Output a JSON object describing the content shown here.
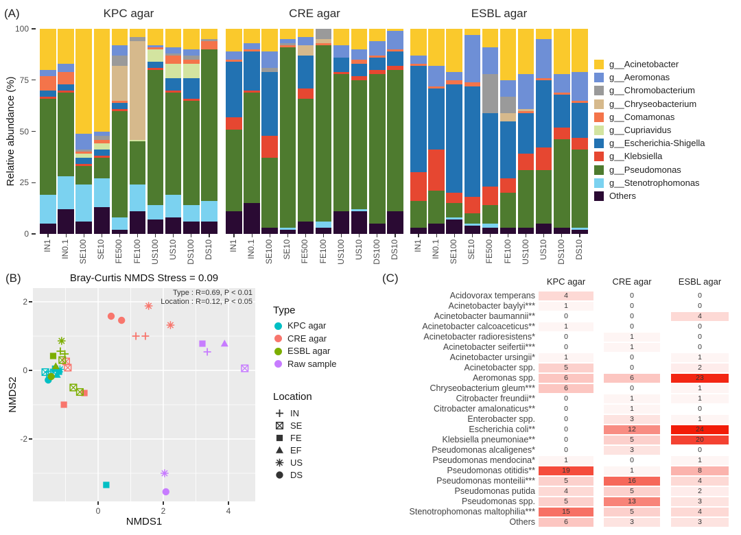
{
  "figure": {
    "panel_a": {
      "label": "(A)",
      "ylabel": "Relative abundance (%)",
      "yticks": [
        0,
        25,
        50,
        75,
        100
      ],
      "samples": [
        "IN1",
        "IN0.1",
        "SE100",
        "SE10",
        "FE500",
        "FE100",
        "US100",
        "US10",
        "DS100",
        "DS10"
      ],
      "taxa": [
        {
          "name": "g__Acinetobacter",
          "color": "#FAC92C"
        },
        {
          "name": "g__Aeromonas",
          "color": "#6E8FD6"
        },
        {
          "name": "g__Chromobacterium",
          "color": "#9A9A9A"
        },
        {
          "name": "g__Chryseobacterium",
          "color": "#D6B98C"
        },
        {
          "name": "g__Comamonas",
          "color": "#F4744A"
        },
        {
          "name": "g__Cupriavidus",
          "color": "#D3E4A0"
        },
        {
          "name": "g__Escherichia-Shigella",
          "color": "#2272B2"
        },
        {
          "name": "g__Klebsiella",
          "color": "#E64731"
        },
        {
          "name": "g__Pseudomonas",
          "color": "#4E7B2F"
        },
        {
          "name": "g__Stenotrophomonas",
          "color": "#7BD2F0"
        },
        {
          "name": "Others",
          "color": "#2A0A33"
        }
      ]
    },
    "panel_b": {
      "label": "(B)",
      "title": "Bray-Curtis  NMDS  Stress = 0.09",
      "annotation_line1": "Type : R=0.69,  P < 0.01",
      "annotation_line2": "Location : R=0.12,  P < 0.05",
      "xlabel": "NMDS1",
      "ylabel": "NMDS2",
      "xticks": [
        0,
        2,
        4
      ],
      "yticks": [
        2,
        0,
        -2
      ],
      "type_legend": {
        "title": "Type",
        "items": [
          {
            "label": "KPC agar",
            "color": "#00BFC4"
          },
          {
            "label": "CRE agar",
            "color": "#F8766D"
          },
          {
            "label": "ESBL agar",
            "color": "#7CAE00"
          },
          {
            "label": "Raw sample",
            "color": "#C77CFF"
          }
        ]
      },
      "location_legend": {
        "title": "Location",
        "items": [
          {
            "label": "IN",
            "shape": "cross"
          },
          {
            "label": "SE",
            "shape": "boxx"
          },
          {
            "label": "FE",
            "shape": "square"
          },
          {
            "label": "EF",
            "shape": "triangle"
          },
          {
            "label": "US",
            "shape": "asterisk"
          },
          {
            "label": "DS",
            "shape": "circle"
          }
        ]
      }
    },
    "panel_c": {
      "label": "(C)",
      "columns": [
        "KPC agar",
        "CRE agar",
        "ESBL agar"
      ],
      "max_value": 24,
      "base_color": "#F21C08"
    }
  },
  "chart_data": [
    {
      "type": "bar",
      "id": "kpc",
      "title": "KPC agar",
      "stacked": true,
      "ylim": [
        0,
        100
      ],
      "categories": [
        "IN1",
        "IN0.1",
        "SE100",
        "SE10",
        "FE500",
        "FE100",
        "US100",
        "US10",
        "DS100",
        "DS10"
      ],
      "series_order": [
        "g__Acinetobacter",
        "g__Aeromonas",
        "g__Chromobacterium",
        "g__Chryseobacterium",
        "g__Comamonas",
        "g__Cupriavidus",
        "g__Escherichia-Shigella",
        "g__Klebsiella",
        "g__Pseudomonas",
        "g__Stenotrophomonas",
        "Others"
      ],
      "values": [
        [
          20,
          3,
          0,
          0,
          7,
          0,
          3,
          1,
          47,
          14,
          5
        ],
        [
          17,
          4,
          0,
          0,
          6,
          0,
          3,
          1,
          41,
          16,
          12
        ],
        [
          51,
          8,
          1,
          0,
          1,
          2,
          3,
          1,
          9,
          18,
          6
        ],
        [
          50,
          2,
          2,
          0,
          2,
          3,
          3,
          1,
          10,
          14,
          13
        ],
        [
          8,
          5,
          5,
          17,
          1,
          0,
          3,
          1,
          52,
          6,
          2
        ],
        [
          4,
          0,
          2,
          48,
          0,
          1,
          0,
          0,
          21,
          13,
          11
        ],
        [
          8,
          1,
          0,
          0,
          1,
          6,
          3,
          1,
          66,
          7,
          7
        ],
        [
          9,
          3,
          1,
          0,
          4,
          7,
          6,
          1,
          50,
          11,
          8
        ],
        [
          10,
          3,
          2,
          0,
          2,
          7,
          10,
          1,
          51,
          8,
          6
        ],
        [
          5,
          0,
          1,
          0,
          4,
          0,
          0,
          0,
          74,
          10,
          6
        ]
      ]
    },
    {
      "type": "bar",
      "id": "cre",
      "title": "CRE agar",
      "stacked": true,
      "ylim": [
        0,
        100
      ],
      "categories": [
        "IN1",
        "IN0.1",
        "SE100",
        "SE10",
        "FE500",
        "FE100",
        "US100",
        "US10",
        "DS100",
        "DS10"
      ],
      "series_order": [
        "g__Acinetobacter",
        "g__Aeromonas",
        "g__Chromobacterium",
        "g__Chryseobacterium",
        "g__Comamonas",
        "g__Cupriavidus",
        "g__Escherichia-Shigella",
        "g__Klebsiella",
        "g__Pseudomonas",
        "g__Stenotrophomonas",
        "Others"
      ],
      "values": [
        [
          11,
          4,
          0,
          0,
          1,
          0,
          27,
          6,
          40,
          0,
          11
        ],
        [
          7,
          3,
          0,
          0,
          1,
          0,
          19,
          1,
          54,
          0,
          15
        ],
        [
          11,
          8,
          2,
          0,
          0,
          0,
          31,
          11,
          34,
          0,
          3
        ],
        [
          5,
          2,
          1,
          0,
          1,
          0,
          0,
          0,
          88,
          1,
          2
        ],
        [
          4,
          4,
          0,
          5,
          0,
          0,
          16,
          5,
          60,
          0,
          6
        ],
        [
          0,
          0,
          5,
          2,
          1,
          0,
          0,
          0,
          86,
          3,
          3
        ],
        [
          8,
          6,
          0,
          0,
          0,
          0,
          7,
          1,
          67,
          0,
          11
        ],
        [
          10,
          5,
          0,
          0,
          2,
          0,
          6,
          2,
          63,
          1,
          11
        ],
        [
          6,
          7,
          0,
          0,
          1,
          0,
          6,
          2,
          73,
          0,
          5
        ],
        [
          1,
          9,
          0,
          0,
          1,
          0,
          7,
          2,
          69,
          0,
          11
        ]
      ]
    },
    {
      "type": "bar",
      "id": "esbl",
      "title": "ESBL agar",
      "stacked": true,
      "ylim": [
        0,
        100
      ],
      "categories": [
        "IN1",
        "IN0.1",
        "SE100",
        "SE10",
        "FE500",
        "FE100",
        "US100",
        "US10",
        "DS100",
        "DS10"
      ],
      "series_order": [
        "g__Acinetobacter",
        "g__Aeromonas",
        "g__Chromobacterium",
        "g__Chryseobacterium",
        "g__Comamonas",
        "g__Cupriavidus",
        "g__Escherichia-Shigella",
        "g__Klebsiella",
        "g__Pseudomonas",
        "g__Stenotrophomonas",
        "Others"
      ],
      "values": [
        [
          13,
          4,
          0,
          0,
          1,
          0,
          52,
          14,
          13,
          0,
          3
        ],
        [
          18,
          10,
          0,
          0,
          1,
          0,
          30,
          20,
          16,
          0,
          5
        ],
        [
          21,
          4,
          0,
          0,
          2,
          0,
          53,
          5,
          7,
          1,
          7
        ],
        [
          3,
          23,
          0,
          0,
          2,
          0,
          54,
          8,
          5,
          1,
          4
        ],
        [
          9,
          13,
          19,
          0,
          0,
          0,
          36,
          9,
          9,
          2,
          3
        ],
        [
          25,
          8,
          8,
          4,
          0,
          0,
          28,
          7,
          17,
          0,
          3
        ],
        [
          22,
          17,
          0,
          1,
          1,
          0,
          20,
          8,
          28,
          0,
          3
        ],
        [
          5,
          19,
          0,
          0,
          1,
          0,
          33,
          11,
          26,
          0,
          5
        ],
        [
          22,
          9,
          0,
          0,
          1,
          0,
          16,
          6,
          43,
          0,
          3
        ],
        [
          21,
          14,
          0,
          0,
          1,
          0,
          17,
          6,
          38,
          1,
          2
        ]
      ]
    },
    {
      "type": "scatter",
      "id": "nmds",
      "title": "Bray-Curtis  NMDS  Stress = 0.09",
      "xlabel": "NMDS1",
      "ylabel": "NMDS2",
      "xlim": [
        -2.0,
        4.8
      ],
      "ylim": [
        -3.82,
        2.4
      ],
      "xticks": [
        0,
        2,
        4
      ],
      "yticks": [
        2,
        0,
        -2
      ],
      "points": [
        {
          "type": "KPC agar",
          "shape": "cross",
          "x": -1.28,
          "y": -0.02
        },
        {
          "type": "KPC agar",
          "shape": "boxx",
          "x": -1.62,
          "y": -0.05
        },
        {
          "type": "KPC agar",
          "shape": "boxx",
          "x": -1.48,
          "y": -0.12
        },
        {
          "type": "KPC agar",
          "shape": "boxx",
          "x": -1.36,
          "y": -0.06
        },
        {
          "type": "KPC agar",
          "shape": "square",
          "x": -1.32,
          "y": 0.05
        },
        {
          "type": "KPC agar",
          "shape": "square",
          "x": -1.2,
          "y": -0.04
        },
        {
          "type": "KPC agar",
          "shape": "triangle",
          "x": -1.26,
          "y": -0.13
        },
        {
          "type": "KPC agar",
          "shape": "asterisk",
          "x": -1.17,
          "y": 0.03
        },
        {
          "type": "KPC agar",
          "shape": "circle",
          "x": -1.53,
          "y": -0.28
        },
        {
          "type": "KPC agar",
          "shape": "square",
          "x": 0.25,
          "y": -3.34
        },
        {
          "type": "CRE agar",
          "shape": "circle",
          "x": 0.4,
          "y": 1.58
        },
        {
          "type": "CRE agar",
          "shape": "circle",
          "x": 0.72,
          "y": 1.46
        },
        {
          "type": "CRE agar",
          "shape": "cross",
          "x": 1.16,
          "y": 1.0
        },
        {
          "type": "CRE agar",
          "shape": "cross",
          "x": 1.45,
          "y": 1.0
        },
        {
          "type": "CRE agar",
          "shape": "asterisk",
          "x": 1.55,
          "y": 1.88
        },
        {
          "type": "CRE agar",
          "shape": "asterisk",
          "x": 2.22,
          "y": 1.32
        },
        {
          "type": "CRE agar",
          "shape": "boxx",
          "x": -0.98,
          "y": 0.26
        },
        {
          "type": "CRE agar",
          "shape": "boxx",
          "x": -0.93,
          "y": 0.08
        },
        {
          "type": "CRE agar",
          "shape": "square",
          "x": -0.42,
          "y": -0.66
        },
        {
          "type": "CRE agar",
          "shape": "square",
          "x": -1.05,
          "y": -1.0
        },
        {
          "type": "ESBL agar",
          "shape": "asterisk",
          "x": -1.12,
          "y": 0.86
        },
        {
          "type": "ESBL agar",
          "shape": "cross",
          "x": -1.16,
          "y": 0.56
        },
        {
          "type": "ESBL agar",
          "shape": "cross",
          "x": -1.02,
          "y": 0.48
        },
        {
          "type": "ESBL agar",
          "shape": "square",
          "x": -1.38,
          "y": 0.42
        },
        {
          "type": "ESBL agar",
          "shape": "boxx",
          "x": -1.1,
          "y": 0.3
        },
        {
          "type": "ESBL agar",
          "shape": "boxx",
          "x": -0.76,
          "y": -0.5
        },
        {
          "type": "ESBL agar",
          "shape": "boxx",
          "x": -0.56,
          "y": -0.63
        },
        {
          "type": "ESBL agar",
          "shape": "circle",
          "x": -1.44,
          "y": -0.18
        },
        {
          "type": "ESBL agar",
          "shape": "triangle",
          "x": -1.3,
          "y": 0.12
        },
        {
          "type": "Raw sample",
          "shape": "square",
          "x": 3.2,
          "y": 0.78
        },
        {
          "type": "Raw sample",
          "shape": "triangle",
          "x": 3.88,
          "y": 0.78
        },
        {
          "type": "Raw sample",
          "shape": "cross",
          "x": 3.35,
          "y": 0.54
        },
        {
          "type": "Raw sample",
          "shape": "boxx",
          "x": 4.5,
          "y": 0.06
        },
        {
          "type": "Raw sample",
          "shape": "asterisk",
          "x": 2.04,
          "y": -3.0
        },
        {
          "type": "Raw sample",
          "shape": "circle",
          "x": 2.08,
          "y": -3.54
        }
      ]
    },
    {
      "type": "heatmap",
      "id": "species-counts",
      "columns": [
        "KPC agar",
        "CRE agar",
        "ESBL agar"
      ],
      "value_range": [
        0,
        24
      ],
      "rows": [
        {
          "name": "Acidovorax temperans",
          "values": [
            4,
            0,
            0
          ]
        },
        {
          "name": "Acinetobacter baylyi***",
          "values": [
            1,
            0,
            0
          ]
        },
        {
          "name": "Acinetobacter baumannii**",
          "values": [
            0,
            0,
            4
          ]
        },
        {
          "name": "Acinetobacter calcoaceticus**",
          "values": [
            1,
            0,
            0
          ]
        },
        {
          "name": "Acinetobacter radioresistens*",
          "values": [
            0,
            1,
            0
          ]
        },
        {
          "name": "Acinetobacter seifertii***",
          "values": [
            0,
            1,
            0
          ]
        },
        {
          "name": "Acinetobacter ursingii*",
          "values": [
            1,
            0,
            1
          ]
        },
        {
          "name": "Acinetobacter spp.",
          "values": [
            5,
            0,
            2
          ]
        },
        {
          "name": "Aeromonas spp.",
          "values": [
            6,
            6,
            23
          ]
        },
        {
          "name": "Chryseobacterium gleum***",
          "values": [
            6,
            0,
            1
          ]
        },
        {
          "name": "Citrobacter freundii**",
          "values": [
            0,
            1,
            1
          ]
        },
        {
          "name": "Citrobacter amalonaticus**",
          "values": [
            0,
            1,
            0
          ]
        },
        {
          "name": "Enterobacter spp.",
          "values": [
            0,
            3,
            1
          ]
        },
        {
          "name": "Escherichia coli**",
          "values": [
            0,
            12,
            24
          ]
        },
        {
          "name": "Klebsiella pneumoniae**",
          "values": [
            0,
            5,
            20
          ]
        },
        {
          "name": "Pseudomonas alcaligenes*",
          "values": [
            0,
            3,
            0
          ]
        },
        {
          "name": "Pseudomonas mendocina*",
          "values": [
            1,
            0,
            1
          ]
        },
        {
          "name": "Pseudomonas otitidis**",
          "values": [
            19,
            1,
            8
          ]
        },
        {
          "name": "Pseudomonas monteilii***",
          "values": [
            5,
            16,
            4
          ]
        },
        {
          "name": "Pseudomonas putida",
          "values": [
            4,
            5,
            2
          ]
        },
        {
          "name": "Pseudomonas spp.",
          "values": [
            5,
            13,
            3
          ]
        },
        {
          "name": "Stenotrophomonas maltophilia***",
          "values": [
            15,
            5,
            4
          ]
        },
        {
          "name": "Others",
          "values": [
            6,
            3,
            3
          ]
        }
      ]
    }
  ]
}
